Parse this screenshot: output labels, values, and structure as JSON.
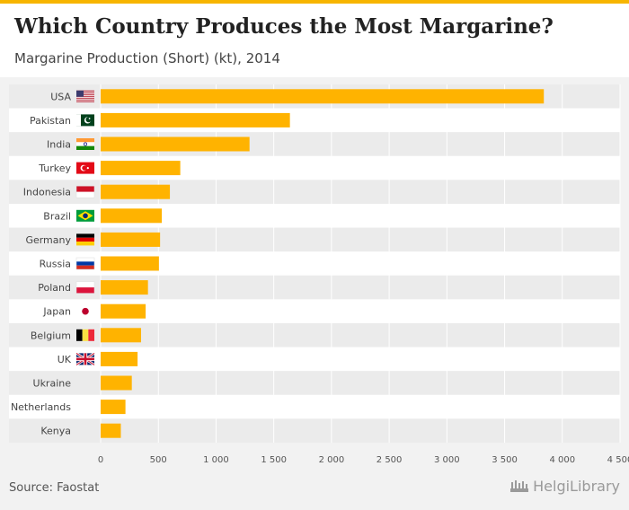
{
  "header": {
    "title": "Which Country Produces the Most Margarine?",
    "subtitle": "Margarine Production (Short) (kt), 2014"
  },
  "footer": {
    "source": "Source: Faostat",
    "brand": "HelgiLibrary"
  },
  "colors": {
    "bar": "#ffb300",
    "accent": "#f7b500",
    "row_alt": "#ebebeb"
  },
  "chart_data": {
    "type": "bar",
    "orientation": "horizontal",
    "title": "Which Country Produces the Most Margarine?",
    "subtitle": "Margarine Production (Short) (kt), 2014",
    "xlabel": "",
    "ylabel": "",
    "xlim": [
      0,
      4500
    ],
    "x_ticks": [
      0,
      500,
      1000,
      1500,
      2000,
      2500,
      3000,
      3500,
      4000,
      4500
    ],
    "x_tick_labels": [
      "0",
      "500",
      "1 000",
      "1 500",
      "2 000",
      "2 500",
      "3 000",
      "3 500",
      "4 000",
      "4 500"
    ],
    "categories": [
      "USA",
      "Pakistan",
      "India",
      "Turkey",
      "Indonesia",
      "Brazil",
      "Germany",
      "Russia",
      "Poland",
      "Japan",
      "Belgium",
      "UK",
      "Ukraine",
      "Netherlands",
      "Kenya"
    ],
    "flags": [
      "us-flag",
      "pk-flag",
      "in-flag",
      "tr-flag",
      "id-flag",
      "br-flag",
      "de-flag",
      "ru-flag",
      "pl-flag",
      "jp-flag",
      "be-flag",
      "gb-flag",
      "",
      "",
      ""
    ],
    "values": [
      3840,
      1640,
      1290,
      690,
      600,
      530,
      515,
      505,
      410,
      390,
      350,
      320,
      270,
      215,
      175
    ]
  }
}
